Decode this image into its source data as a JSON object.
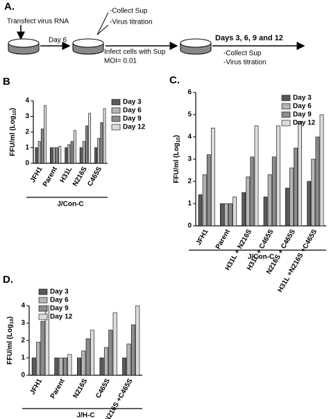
{
  "panel_a": {
    "label": "A.",
    "step1": "Transfect virus RNA",
    "arrow1": "Day 6",
    "collect1": "-Collect Sup",
    "titration1": "-Virus titration",
    "infect": "Infect cells with Sup",
    "moi": "MOI= 0.01",
    "days": "Days 3, 6, 9 and 12",
    "collect2": "-Collect Sup",
    "titration2": "-Virus titration"
  },
  "chart_data": [
    {
      "type": "bar",
      "panel": "B",
      "y_label": [
        "FFU/ml (Log",
        "10",
        ")"
      ],
      "group_label": "J/Con-C",
      "legend": "right",
      "categories": [
        "JFH1",
        "Parent",
        "H31L",
        "N216S",
        "C465S"
      ],
      "series": [
        {
          "name": "Day 3",
          "color": "#5a5a5a",
          "values": [
            1.0,
            1.0,
            1.0,
            1.0,
            1.0
          ]
        },
        {
          "name": "Day 6",
          "color": "#b5b5b5",
          "values": [
            1.4,
            1.0,
            1.2,
            1.4,
            1.6
          ]
        },
        {
          "name": "Day 9",
          "color": "#8c8c8c",
          "values": [
            2.2,
            1.0,
            1.4,
            2.4,
            2.6
          ]
        },
        {
          "name": "Day 12",
          "color": "#dcdcdc",
          "values": [
            3.7,
            1.1,
            2.1,
            3.2,
            3.5
          ]
        }
      ],
      "ylim": [
        0,
        4
      ],
      "yticks": [
        0,
        1,
        2,
        3,
        4
      ]
    },
    {
      "type": "bar",
      "panel": "C.",
      "y_label": [
        "FFU/ml (Log",
        "10",
        ")"
      ],
      "group_label": "J/Con-C",
      "legend": "upper right",
      "categories": [
        "JFH1",
        "Parent",
        "H31L + N216S",
        "H31L + C465S",
        "N216S + C465S",
        "H31L +N216S +C465S"
      ],
      "series": [
        {
          "name": "Day 3",
          "color": "#5a5a5a",
          "values": [
            1.4,
            1.0,
            1.5,
            1.3,
            1.7,
            2.0
          ]
        },
        {
          "name": "Day 6",
          "color": "#b5b5b5",
          "values": [
            2.3,
            1.0,
            2.2,
            2.3,
            2.6,
            3.0
          ]
        },
        {
          "name": "Day 9",
          "color": "#8c8c8c",
          "values": [
            3.2,
            1.0,
            3.1,
            3.1,
            3.5,
            4.0
          ]
        },
        {
          "name": "Day 12",
          "color": "#dcdcdc",
          "values": [
            4.4,
            1.3,
            4.5,
            4.5,
            4.7,
            5.0
          ]
        }
      ],
      "ylim": [
        0,
        6
      ],
      "yticks": [
        0,
        1,
        2,
        3,
        4,
        5,
        6
      ]
    },
    {
      "type": "bar",
      "panel": "D.",
      "y_label": [
        "FFU/ml (Log",
        "10",
        ")"
      ],
      "group_label": "J/H-C",
      "legend": "upper left",
      "categories": [
        "JFH1",
        "Parent",
        "N216S",
        "C465S",
        "N216S +C465S"
      ],
      "series": [
        {
          "name": "Day 3",
          "color": "#5a5a5a",
          "values": [
            1.0,
            1.0,
            1.0,
            1.0,
            1.0
          ]
        },
        {
          "name": "Day 6",
          "color": "#b5b5b5",
          "values": [
            1.9,
            1.0,
            1.4,
            1.6,
            1.8
          ]
        },
        {
          "name": "Day 9",
          "color": "#8c8c8c",
          "values": [
            3.1,
            1.0,
            2.1,
            2.6,
            2.9
          ]
        },
        {
          "name": "Day 12",
          "color": "#dcdcdc",
          "values": [
            4.0,
            1.2,
            2.6,
            3.6,
            4.0
          ]
        }
      ],
      "ylim": [
        0,
        4
      ],
      "yticks": [
        0,
        1,
        2,
        3,
        4
      ]
    }
  ]
}
